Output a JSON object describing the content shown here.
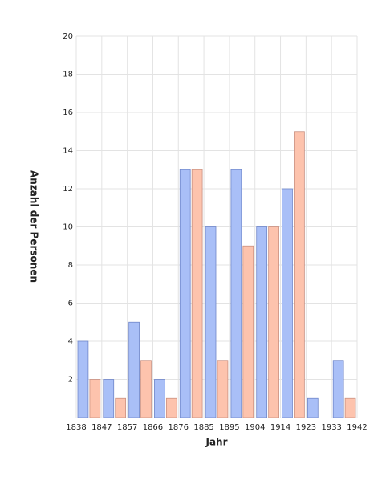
{
  "chart_data": {
    "type": "histogram",
    "bins": [
      1838,
      1847.45,
      1856.91,
      1866.36,
      1875.82,
      1885.27,
      1894.73,
      1904.18,
      1913.64,
      1923.09,
      1932.55,
      1942
    ],
    "series": [
      {
        "color": "#a9bff7",
        "values": [
          4,
          2,
          5,
          2,
          13,
          10,
          13,
          10,
          12,
          1,
          3
        ]
      },
      {
        "color": "#fdc3ad",
        "values": [
          2,
          1,
          3,
          1,
          13,
          3,
          9,
          10,
          15,
          0,
          1
        ]
      }
    ],
    "x_label": "Jahr",
    "y_label": "Anzahl der Personen",
    "xlim": [
      1838,
      1942
    ],
    "xticks": [
      {
        "value": 1838,
        "label": "1838"
      },
      {
        "value": 1847.45,
        "label": "1847"
      },
      {
        "value": 1856.91,
        "label": "1857"
      },
      {
        "value": 1866.36,
        "label": "1866"
      },
      {
        "value": 1875.82,
        "label": "1876"
      },
      {
        "value": 1885.27,
        "label": "1885"
      },
      {
        "value": 1894.73,
        "label": "1895"
      },
      {
        "value": 1904.18,
        "label": "1904"
      },
      {
        "value": 1913.64,
        "label": "1914"
      },
      {
        "value": 1923.09,
        "label": "1923"
      },
      {
        "value": 1932.55,
        "label": "1933"
      },
      {
        "value": 1942,
        "label": "1942"
      }
    ],
    "ylim": [
      0,
      20
    ],
    "yticks": [
      2,
      4,
      6,
      8,
      10,
      12,
      14,
      16,
      18,
      20
    ],
    "grid": true
  }
}
